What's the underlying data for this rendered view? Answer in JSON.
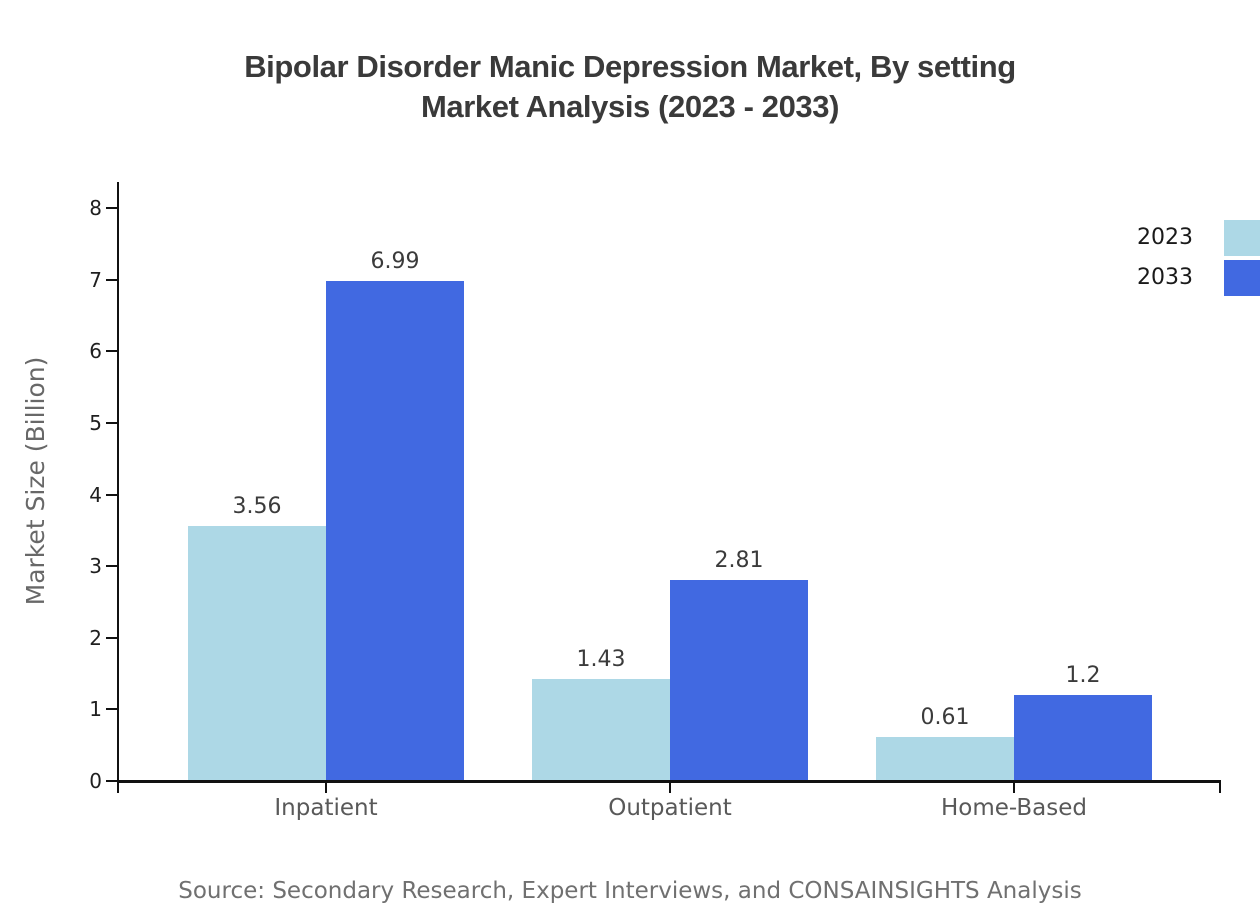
{
  "chart_data": {
    "type": "bar",
    "title_line1": "Bipolar Disorder Manic Depression Market, By setting",
    "title_line2": "Market Analysis (2023 - 2033)",
    "ylabel": "Market Size (Billion)",
    "categories": [
      "Inpatient",
      "Outpatient",
      "Home-Based"
    ],
    "series": [
      {
        "name": "2023",
        "color": "#ADD8E6",
        "values": [
          3.56,
          1.43,
          0.61
        ],
        "value_labels": [
          "3.56",
          "1.43",
          "0.61"
        ]
      },
      {
        "name": "2033",
        "color": "#4169E1",
        "values": [
          6.99,
          2.81,
          1.2
        ],
        "value_labels": [
          "6.99",
          "2.81",
          "1.2"
        ]
      }
    ],
    "ylim": [
      0,
      8
    ],
    "yticks": [
      0,
      1,
      2,
      3,
      4,
      5,
      6,
      7,
      8
    ],
    "grid": false,
    "legend_position": "right-edge-middle",
    "source": "Source: Secondary Research, Expert Interviews, and CONSAINSIGHTS Analysis",
    "colors": {
      "title_text": "#3A3A3A",
      "tick_text": "#1F1F1F",
      "category_text": "#595959",
      "ylabel_text": "#686868",
      "source_text": "#707070",
      "axis": "#111111"
    }
  }
}
